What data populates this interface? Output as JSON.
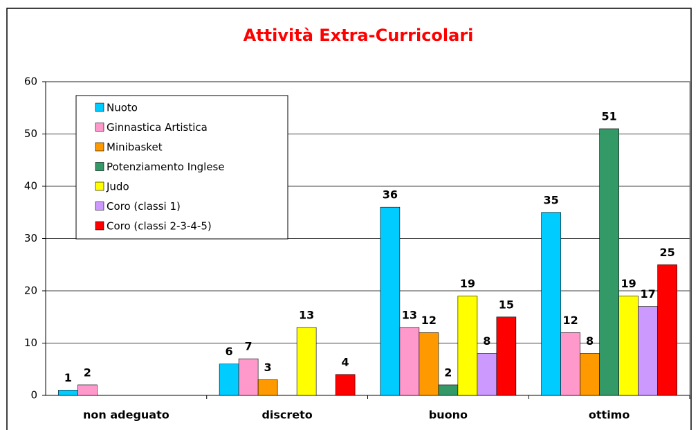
{
  "chart_data": {
    "type": "bar",
    "title": "Attività Extra-Curricolari",
    "categories": [
      "non adeguato",
      "discreto",
      "buono",
      "ottimo"
    ],
    "series": [
      {
        "name": "Nuoto",
        "color": "#00ccff",
        "values": [
          1,
          6,
          36,
          35
        ]
      },
      {
        "name": "Ginnastica Artistica",
        "color": "#ff99cc",
        "values": [
          2,
          7,
          13,
          12
        ]
      },
      {
        "name": "Minibasket",
        "color": "#ff9900",
        "values": [
          null,
          3,
          12,
          8
        ]
      },
      {
        "name": "Potenziamento Inglese",
        "color": "#339966",
        "values": [
          null,
          null,
          2,
          51
        ]
      },
      {
        "name": "Judo",
        "color": "#ffff00",
        "values": [
          null,
          13,
          19,
          19
        ]
      },
      {
        "name": "Coro (classi 1)",
        "color": "#cc99ff",
        "values": [
          null,
          null,
          8,
          17
        ]
      },
      {
        "name": "Coro (classi 2-3-4-5)",
        "color": "#ff0000",
        "values": [
          null,
          4,
          15,
          25
        ]
      }
    ],
    "ylim": [
      0,
      60
    ],
    "yticks": [
      0,
      10,
      20,
      30,
      40,
      50,
      60
    ],
    "grid": true,
    "legend": "upper left"
  }
}
